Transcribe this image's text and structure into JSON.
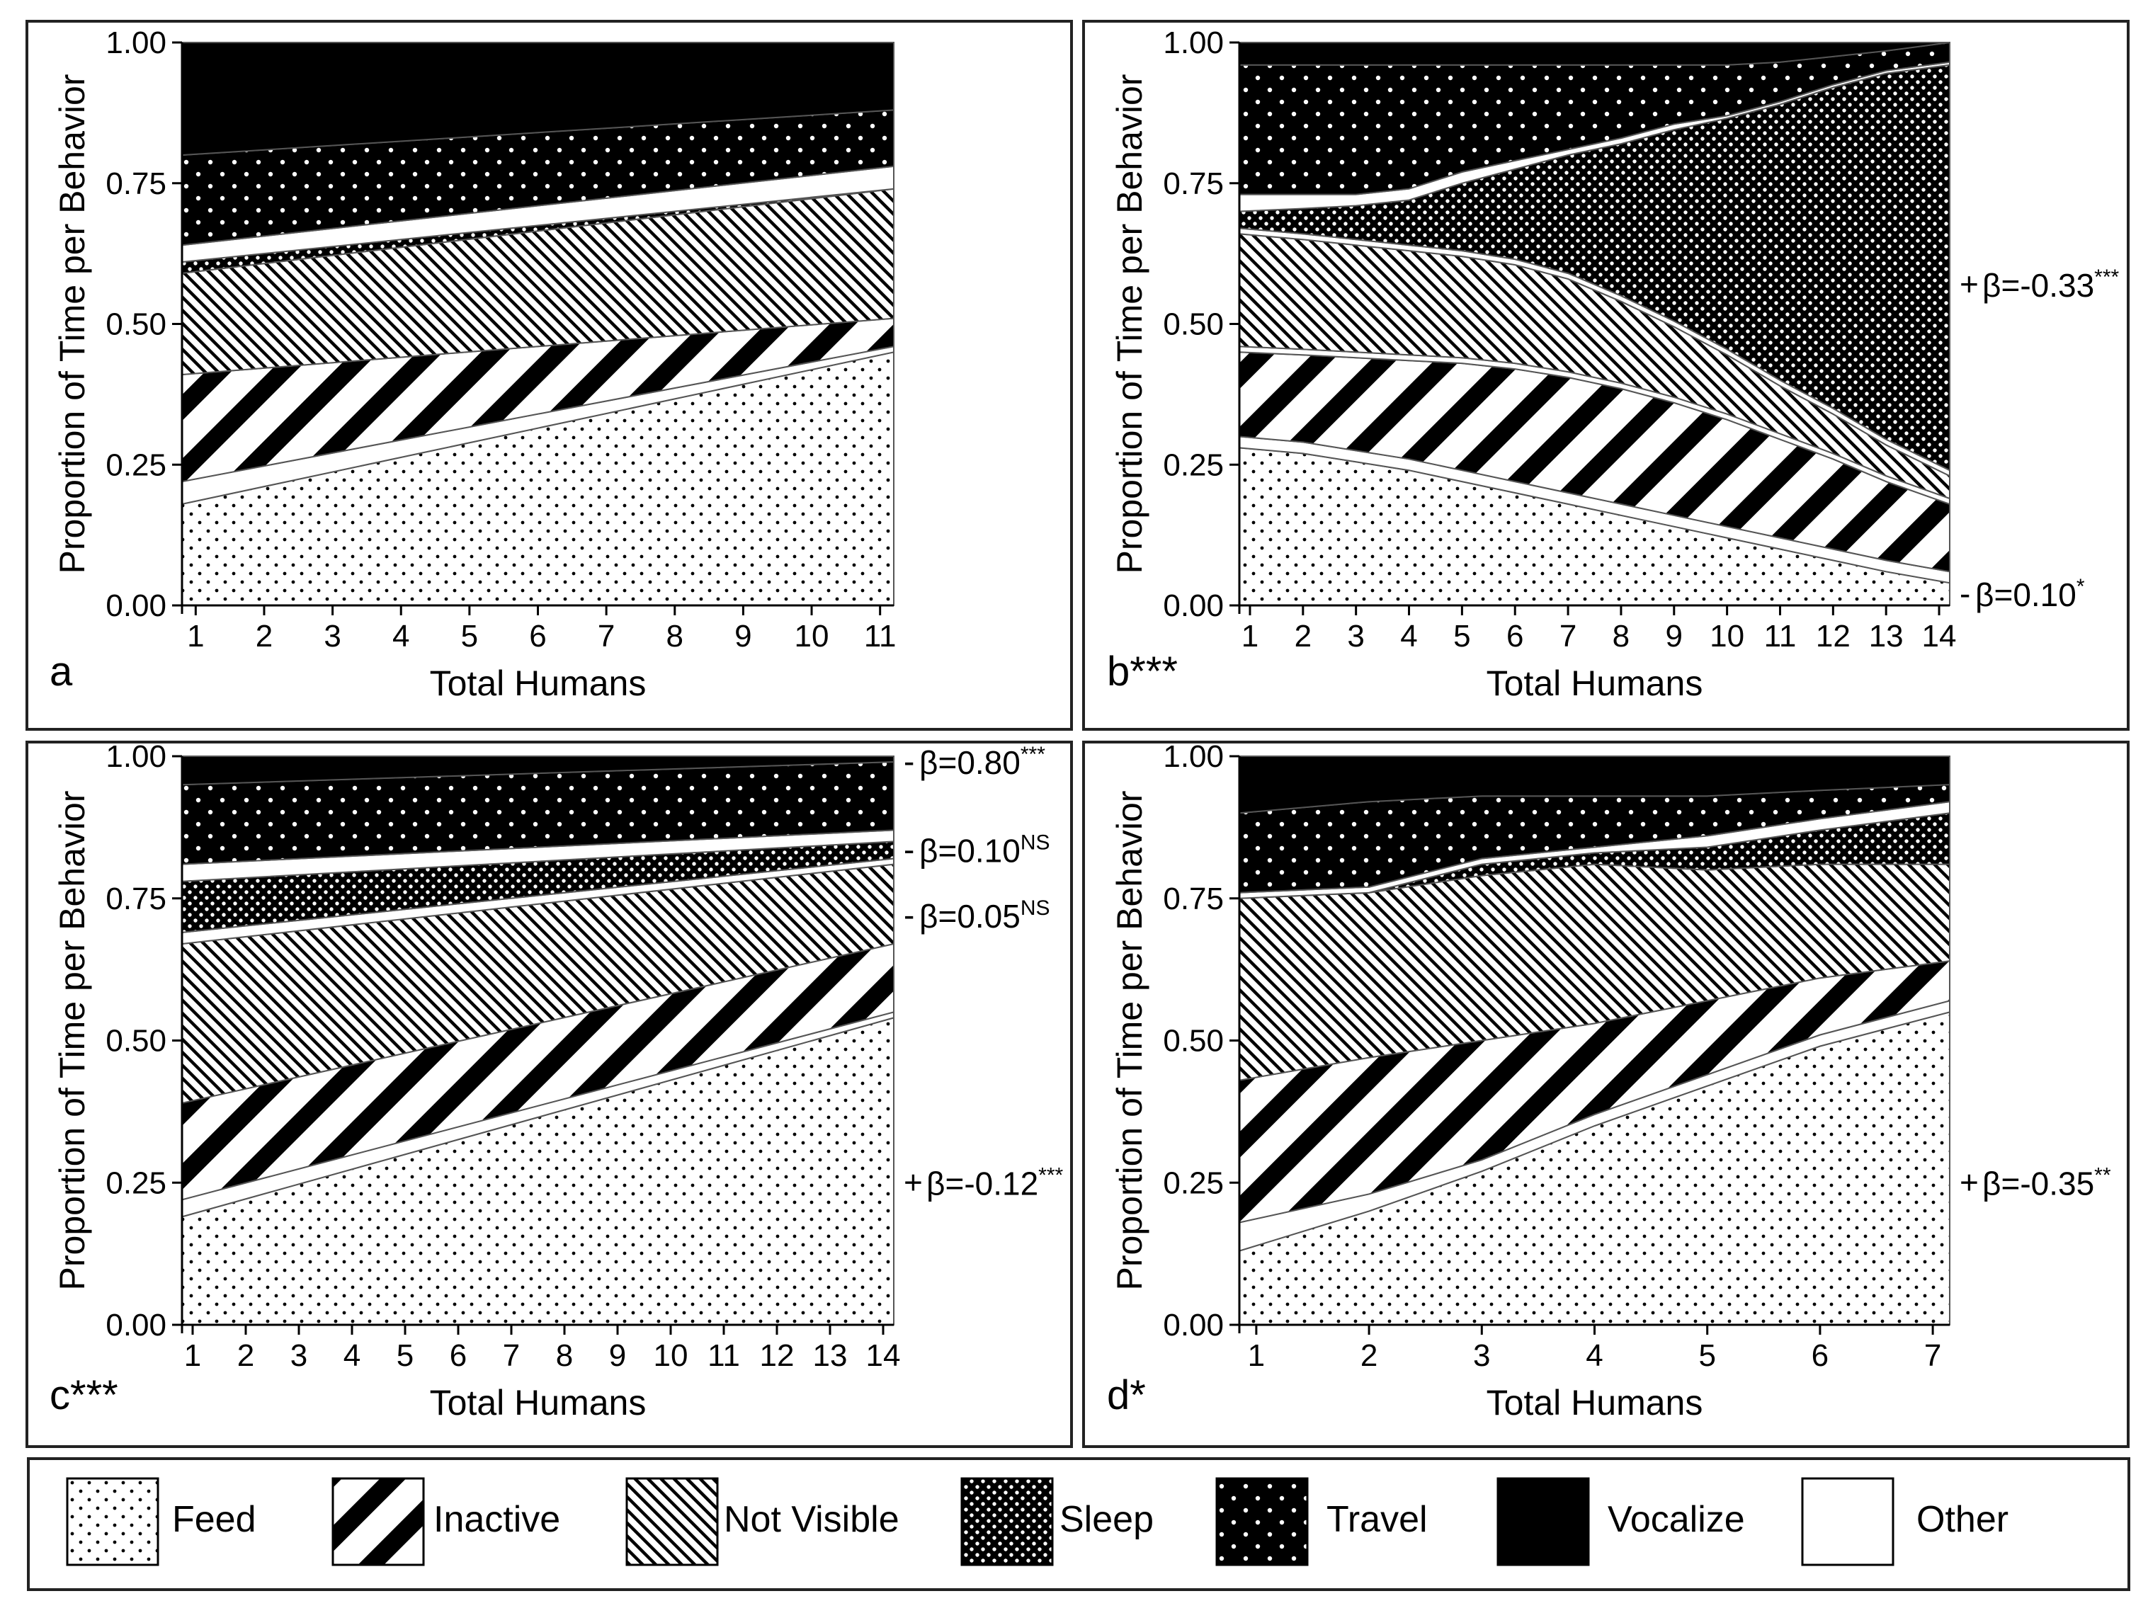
{
  "figure": {
    "panels": [
      {
        "id": "a",
        "label": "a",
        "stars": ""
      },
      {
        "id": "b",
        "label": "b",
        "stars": "***"
      },
      {
        "id": "c",
        "label": "c",
        "stars": "***"
      },
      {
        "id": "d",
        "label": "d",
        "stars": "*"
      }
    ]
  },
  "legend": [
    {
      "key": "feed",
      "label": "Feed"
    },
    {
      "key": "inactive",
      "label": "Inactive"
    },
    {
      "key": "notvisible",
      "label": "Not Visible"
    },
    {
      "key": "sleep",
      "label": "Sleep"
    },
    {
      "key": "travel",
      "label": "Travel"
    },
    {
      "key": "vocalize",
      "label": "Vocalize"
    },
    {
      "key": "other",
      "label": "Other"
    }
  ],
  "colors": {
    "ink": "#000000",
    "paper": "#ffffff",
    "frame": "#222222"
  },
  "chart_data": [
    {
      "id": "a",
      "type": "area",
      "stacked": true,
      "title": "",
      "xlabel": "Total Humans",
      "ylabel": "Proportion of Time per Behavior",
      "x": [
        1,
        11
      ],
      "xlim": [
        0.8,
        11.2
      ],
      "ylim": [
        0,
        1
      ],
      "xticks": [
        1,
        2,
        3,
        4,
        5,
        6,
        7,
        8,
        9,
        10,
        11
      ],
      "yticks": [
        "0.00",
        "0.25",
        "0.50",
        "0.75",
        "1.00"
      ],
      "series": [
        {
          "name": "Feed",
          "values": [
            0.18,
            0.45
          ]
        },
        {
          "name": "Other",
          "values": [
            0.04,
            0.01
          ]
        },
        {
          "name": "Inactive",
          "values": [
            0.19,
            0.05
          ]
        },
        {
          "name": "Not Visible",
          "values": [
            0.18,
            0.23
          ]
        },
        {
          "name": "Sleep",
          "values": [
            0.02,
            0.0
          ]
        },
        {
          "name": "Other",
          "values": [
            0.03,
            0.04
          ]
        },
        {
          "name": "Travel",
          "values": [
            0.16,
            0.1
          ]
        },
        {
          "name": "Vocalize",
          "values": [
            0.2,
            0.12
          ]
        }
      ],
      "annotations": []
    },
    {
      "id": "b",
      "type": "area",
      "stacked": true,
      "title": "",
      "xlabel": "Total Humans",
      "ylabel": "Proportion of Time per Behavior",
      "x": [
        1,
        2,
        3,
        4,
        5,
        6,
        7,
        8,
        9,
        10,
        11,
        12,
        13,
        14
      ],
      "xlim": [
        0.8,
        14.2
      ],
      "ylim": [
        0,
        1
      ],
      "xticks": [
        1,
        2,
        3,
        4,
        5,
        6,
        7,
        8,
        9,
        10,
        11,
        12,
        13,
        14
      ],
      "yticks": [
        "0.00",
        "0.25",
        "0.50",
        "0.75",
        "1.00"
      ],
      "series": [
        {
          "name": "Feed",
          "values": [
            0.28,
            0.27,
            0.255,
            0.24,
            0.22,
            0.2,
            0.18,
            0.16,
            0.14,
            0.12,
            0.1,
            0.08,
            0.06,
            0.04
          ]
        },
        {
          "name": "Other",
          "values": [
            0.02,
            0.02,
            0.02,
            0.02,
            0.02,
            0.02,
            0.02,
            0.02,
            0.02,
            0.02,
            0.02,
            0.02,
            0.02,
            0.02
          ]
        },
        {
          "name": "Inactive",
          "values": [
            0.15,
            0.155,
            0.165,
            0.175,
            0.19,
            0.2,
            0.205,
            0.205,
            0.2,
            0.19,
            0.175,
            0.16,
            0.14,
            0.12
          ]
        },
        {
          "name": "Other",
          "values": [
            0.01,
            0.01,
            0.01,
            0.01,
            0.01,
            0.01,
            0.01,
            0.01,
            0.01,
            0.01,
            0.01,
            0.01,
            0.01,
            0.01
          ]
        },
        {
          "name": "Not Visible",
          "values": [
            0.2,
            0.195,
            0.19,
            0.185,
            0.18,
            0.175,
            0.165,
            0.145,
            0.125,
            0.105,
            0.085,
            0.07,
            0.055,
            0.04
          ]
        },
        {
          "name": "Other",
          "values": [
            0.01,
            0.01,
            0.01,
            0.01,
            0.01,
            0.01,
            0.01,
            0.01,
            0.01,
            0.01,
            0.01,
            0.01,
            0.01,
            0.01
          ]
        },
        {
          "name": "Sleep",
          "values": [
            0.03,
            0.045,
            0.06,
            0.08,
            0.12,
            0.16,
            0.21,
            0.27,
            0.34,
            0.41,
            0.49,
            0.57,
            0.65,
            0.72
          ]
        },
        {
          "name": "Other",
          "values": [
            0.03,
            0.025,
            0.02,
            0.02,
            0.02,
            0.015,
            0.01,
            0.01,
            0.01,
            0.005,
            0.005,
            0.005,
            0.005,
            0.005
          ]
        },
        {
          "name": "Travel",
          "values": [
            0.23,
            0.23,
            0.23,
            0.22,
            0.19,
            0.17,
            0.15,
            0.13,
            0.105,
            0.09,
            0.07,
            0.05,
            0.035,
            0.035
          ]
        },
        {
          "name": "Vocalize",
          "values": [
            0.04,
            0.04,
            0.04,
            0.04,
            0.04,
            0.04,
            0.04,
            0.04,
            0.04,
            0.04,
            0.04,
            0.03,
            0.03,
            0.01
          ]
        }
      ],
      "annotations": [
        {
          "text": "β=-0.33",
          "sup": "***",
          "sign": "+",
          "y": 0.57
        },
        {
          "text": "β=0.10",
          "sup": "*",
          "sign": "-",
          "y": 0.02
        }
      ]
    },
    {
      "id": "c",
      "type": "area",
      "stacked": true,
      "title": "",
      "xlabel": "Total Humans",
      "ylabel": "Proportion of Time per Behavior",
      "x": [
        1,
        14
      ],
      "xlim": [
        0.8,
        14.2
      ],
      "ylim": [
        0,
        1
      ],
      "xticks": [
        1,
        2,
        3,
        4,
        5,
        6,
        7,
        8,
        9,
        10,
        11,
        12,
        13,
        14
      ],
      "yticks": [
        "0.00",
        "0.25",
        "0.50",
        "0.75",
        "1.00"
      ],
      "series": [
        {
          "name": "Feed",
          "values": [
            0.19,
            0.54
          ]
        },
        {
          "name": "Other",
          "values": [
            0.03,
            0.01
          ]
        },
        {
          "name": "Inactive",
          "values": [
            0.17,
            0.12
          ]
        },
        {
          "name": "Not Visible",
          "values": [
            0.28,
            0.14
          ]
        },
        {
          "name": "Other",
          "values": [
            0.02,
            0.01
          ]
        },
        {
          "name": "Sleep",
          "values": [
            0.09,
            0.03
          ]
        },
        {
          "name": "Other",
          "values": [
            0.03,
            0.02
          ]
        },
        {
          "name": "Travel",
          "values": [
            0.14,
            0.12
          ]
        },
        {
          "name": "Vocalize",
          "values": [
            0.05,
            0.01
          ]
        }
      ],
      "annotations": [
        {
          "text": "β=0.80",
          "sup": "***",
          "sign": "-",
          "y": 0.99
        },
        {
          "text": "β=0.10",
          "sup": "NS",
          "sign": "-",
          "y": 0.835
        },
        {
          "text": "β=0.05",
          "sup": "NS",
          "sign": "-",
          "y": 0.72
        },
        {
          "text": "β=-0.12",
          "sup": "***",
          "sign": "+",
          "y": 0.25
        }
      ]
    },
    {
      "id": "d",
      "type": "area",
      "stacked": true,
      "title": "",
      "xlabel": "Total Humans",
      "ylabel": "Proportion of Time per Behavior",
      "x": [
        1,
        2,
        3,
        4,
        5,
        6,
        7
      ],
      "xlim": [
        0.85,
        7.15
      ],
      "ylim": [
        0,
        1
      ],
      "xticks": [
        1,
        2,
        3,
        4,
        5,
        6,
        7
      ],
      "yticks": [
        "0.00",
        "0.25",
        "0.50",
        "0.75",
        "1.00"
      ],
      "series": [
        {
          "name": "Feed",
          "values": [
            0.13,
            0.2,
            0.27,
            0.35,
            0.42,
            0.49,
            0.55
          ]
        },
        {
          "name": "Other",
          "values": [
            0.05,
            0.03,
            0.02,
            0.02,
            0.02,
            0.02,
            0.02
          ]
        },
        {
          "name": "Inactive",
          "values": [
            0.25,
            0.24,
            0.21,
            0.16,
            0.13,
            0.1,
            0.07
          ]
        },
        {
          "name": "Not Visible",
          "values": [
            0.32,
            0.29,
            0.29,
            0.28,
            0.23,
            0.2,
            0.17
          ]
        },
        {
          "name": "Sleep",
          "values": [
            0.0,
            0.0,
            0.02,
            0.02,
            0.04,
            0.06,
            0.09
          ]
        },
        {
          "name": "Other",
          "values": [
            0.01,
            0.01,
            0.01,
            0.01,
            0.02,
            0.02,
            0.02
          ]
        },
        {
          "name": "Travel",
          "values": [
            0.14,
            0.15,
            0.11,
            0.09,
            0.07,
            0.05,
            0.03
          ]
        },
        {
          "name": "Vocalize",
          "values": [
            0.1,
            0.08,
            0.07,
            0.07,
            0.07,
            0.06,
            0.05
          ]
        }
      ],
      "annotations": [
        {
          "text": "β=-0.35",
          "sup": "**",
          "sign": "+",
          "y": 0.25
        }
      ]
    }
  ]
}
